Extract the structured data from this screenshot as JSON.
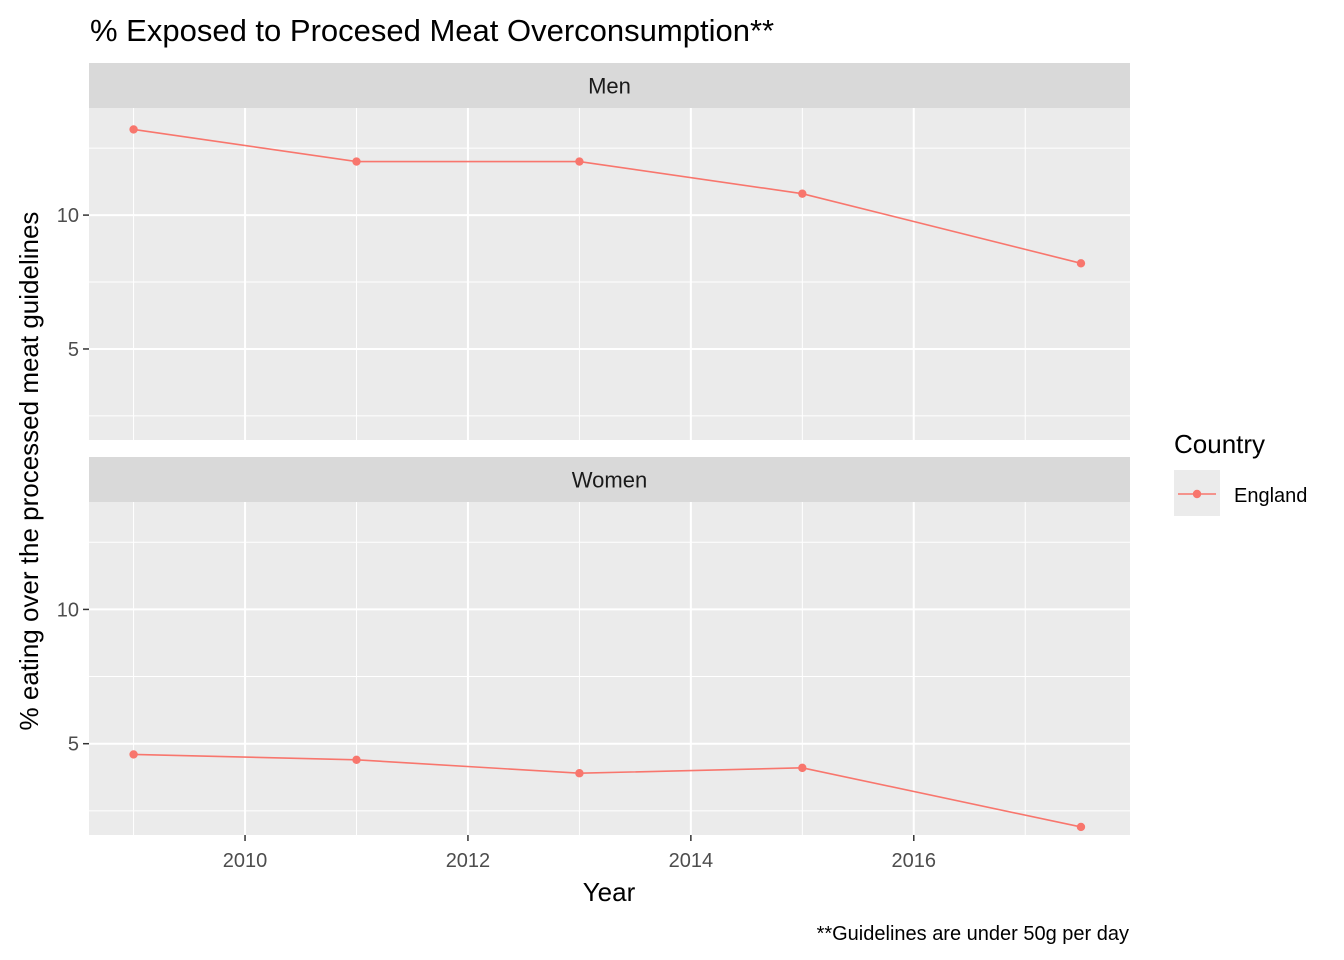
{
  "chart_data": {
    "type": "line",
    "title": "%  Exposed to Procesed Meat Overconsumption**",
    "xlabel": "Year",
    "ylabel": "% eating over the processed meat guidelines",
    "caption": "**Guidelines are under 50g per day",
    "xlim": [
      2008.6,
      2017.94
    ],
    "ylim": [
      1.6,
      14.0
    ],
    "x_ticks": [
      2010,
      2012,
      2014,
      2016
    ],
    "y_ticks": [
      5,
      10
    ],
    "grid": true,
    "legend": {
      "title": "Country",
      "position": "right",
      "entries": [
        "England"
      ]
    },
    "panels": [
      {
        "label": "Men",
        "series": [
          {
            "name": "England",
            "color": "#F8766D",
            "x": [
              2009,
              2011,
              2013,
              2015,
              2017.5
            ],
            "y": [
              13.2,
              12.0,
              12.0,
              10.8,
              8.2
            ]
          }
        ]
      },
      {
        "label": "Women",
        "series": [
          {
            "name": "England",
            "color": "#F8766D",
            "x": [
              2009,
              2011,
              2013,
              2015,
              2017.5
            ],
            "y": [
              4.6,
              4.4,
              3.9,
              4.1,
              1.9
            ]
          }
        ]
      }
    ]
  }
}
